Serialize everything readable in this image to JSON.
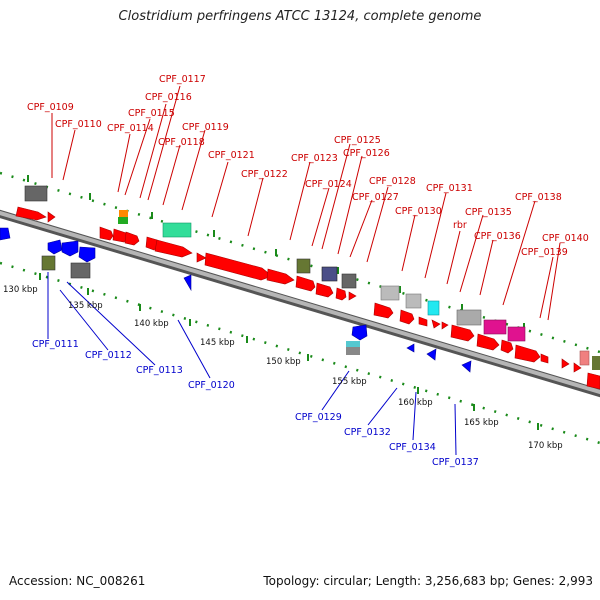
{
  "title": "Clostridium perfringens ATCC 13124, complete genome",
  "footer": {
    "accession": "Accession: NC_008261",
    "topology": "Topology: circular; Length: 3,256,683 bp; Genes: 2,993"
  },
  "colors": {
    "forward_label": "#cc0000",
    "reverse_label": "#0000cc",
    "forward_gene": "#ff0000",
    "reverse_gene": "#0000ff",
    "backbone": "#8a8a8a",
    "dots": "#1a8a1a"
  },
  "scale_ticks": [
    "130 kbp",
    "135 kbp",
    "140 kbp",
    "145 kbp",
    "150 kbp",
    "155 kbp",
    "160 kbp",
    "165 kbp",
    "170 kbp"
  ],
  "forward_labels": [
    "CPF_0109",
    "CPF_0110",
    "CPF_0114",
    "CPF_0115",
    "CPF_0116",
    "CPF_0117",
    "CPF_0118",
    "CPF_0119",
    "CPF_0121",
    "CPF_0122",
    "CPF_0123",
    "CPF_0124",
    "CPF_0125",
    "CPF_0126",
    "CPF_0127",
    "CPF_0128",
    "CPF_0130",
    "CPF_0131",
    "rbr",
    "CPF_0135",
    "CPF_0136",
    "CPF_0138",
    "CPF_0139",
    "CPF_0140"
  ],
  "reverse_labels": [
    "CPF_0111",
    "CPF_0112",
    "CPF_0113",
    "CPF_0120",
    "CPF_0129",
    "CPF_0132",
    "CPF_0134",
    "CPF_0137"
  ]
}
